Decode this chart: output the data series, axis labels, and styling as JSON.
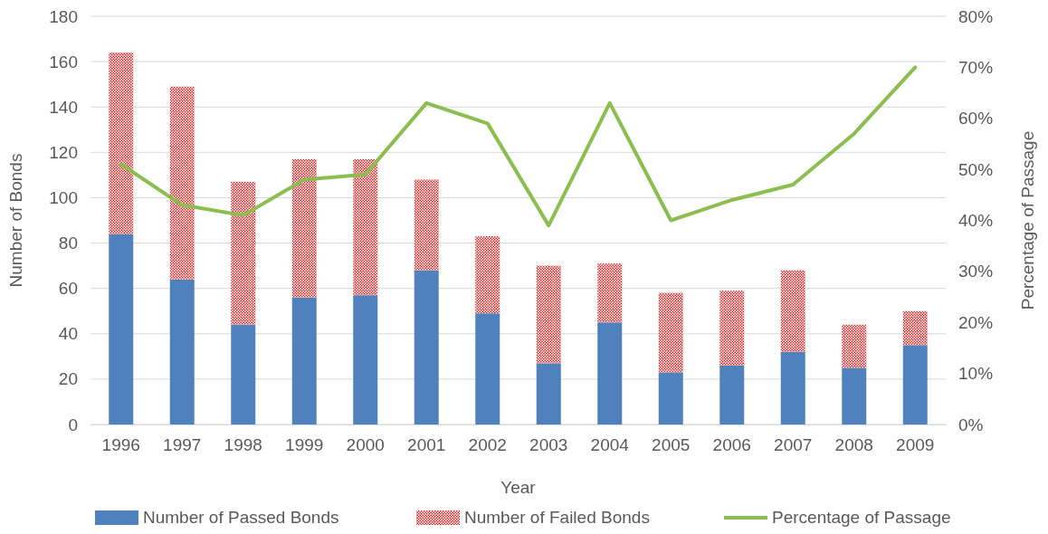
{
  "chart_data": {
    "type": "bar",
    "stacked": true,
    "xlabel": "Year",
    "ylabel": "Number of Bonds",
    "y2label": "Percentage of Passage",
    "categories": [
      "1996",
      "1997",
      "1998",
      "1999",
      "2000",
      "2001",
      "2002",
      "2003",
      "2004",
      "2005",
      "2006",
      "2007",
      "2008",
      "2009"
    ],
    "series": [
      {
        "name": "Number of Passed Bonds",
        "color": "#4f81bd",
        "values": [
          84,
          64,
          44,
          56,
          57,
          68,
          49,
          27,
          45,
          23,
          26,
          32,
          25,
          35
        ]
      },
      {
        "name": "Number of Failed Bonds",
        "color": "#e02020",
        "values": [
          80,
          85,
          63,
          61,
          60,
          40,
          34,
          43,
          26,
          35,
          33,
          36,
          19,
          15
        ]
      },
      {
        "name": "Percentage of Passage",
        "type": "line",
        "axis": "y2",
        "color": "#8cbd4f",
        "values": [
          51,
          43,
          41,
          48,
          49,
          63,
          59,
          39,
          63,
          40,
          44,
          47,
          57,
          70
        ]
      }
    ],
    "ylim": [
      0,
      180
    ],
    "yticks": [
      0,
      20,
      40,
      60,
      80,
      100,
      120,
      140,
      160,
      180
    ],
    "y2lim": [
      0,
      80
    ],
    "y2ticks": [
      {
        "value": 0,
        "label": "0%"
      },
      {
        "value": 10,
        "label": "10%"
      },
      {
        "value": 20,
        "label": "20%"
      },
      {
        "value": 30,
        "label": "30%"
      },
      {
        "value": 40,
        "label": "40%"
      },
      {
        "value": 50,
        "label": "50%"
      },
      {
        "value": 60,
        "label": "60%"
      },
      {
        "value": 70,
        "label": "70%"
      },
      {
        "value": 80,
        "label": "80%"
      }
    ],
    "grid": "y",
    "legend": "bottom",
    "marker": "none",
    "line_style": "solid"
  }
}
